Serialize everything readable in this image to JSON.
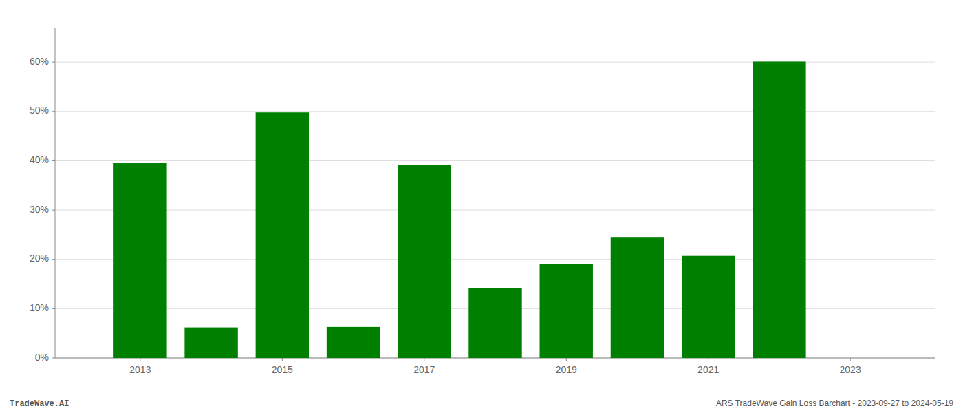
{
  "chart_data": {
    "type": "bar",
    "x": [
      2013,
      2014,
      2015,
      2016,
      2017,
      2018,
      2019,
      2020,
      2021,
      2022
    ],
    "values": [
      0.395,
      0.062,
      0.498,
      0.063,
      0.392,
      0.141,
      0.191,
      0.244,
      0.207,
      0.601
    ],
    "color": "#008000",
    "xlim": [
      2011.8,
      2024.2
    ],
    "xticks": [
      2013,
      2015,
      2017,
      2019,
      2021,
      2023
    ],
    "ylim": [
      0,
      0.67
    ],
    "yticks": [
      {
        "value": 0.0,
        "label": "0%"
      },
      {
        "value": 0.1,
        "label": "10%"
      },
      {
        "value": 0.2,
        "label": "20%"
      },
      {
        "value": 0.3,
        "label": "30%"
      },
      {
        "value": 0.4,
        "label": "40%"
      },
      {
        "value": 0.5,
        "label": "50%"
      },
      {
        "value": 0.6,
        "label": "60%"
      }
    ],
    "grid": true,
    "annotations": [
      "TradeWave.AI",
      "ARS TradeWave Gain Loss Barchart - 2023-09-27 to 2024-05-19"
    ]
  }
}
